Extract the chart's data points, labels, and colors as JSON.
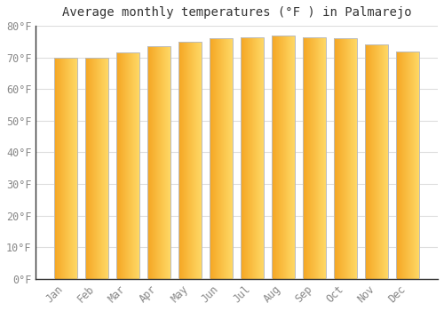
{
  "title": "Average monthly temperatures (°F ) in Palmarejo",
  "months": [
    "Jan",
    "Feb",
    "Mar",
    "Apr",
    "May",
    "Jun",
    "Jul",
    "Aug",
    "Sep",
    "Oct",
    "Nov",
    "Dec"
  ],
  "values": [
    70.0,
    70.0,
    71.5,
    73.5,
    75.0,
    76.0,
    76.5,
    77.0,
    76.5,
    76.0,
    74.0,
    72.0
  ],
  "bar_color_left": "#F5A623",
  "bar_color_right": "#FFD966",
  "bar_edge_color": "#BBBBBB",
  "ylim": [
    0,
    80
  ],
  "yticks": [
    0,
    10,
    20,
    30,
    40,
    50,
    60,
    70,
    80
  ],
  "ytick_labels": [
    "0°F",
    "10°F",
    "20°F",
    "30°F",
    "40°F",
    "50°F",
    "60°F",
    "70°F",
    "80°F"
  ],
  "background_color": "#FFFFFF",
  "grid_color": "#DDDDDD",
  "title_fontsize": 10,
  "tick_fontsize": 8.5,
  "font_family": "monospace",
  "bar_width": 0.75,
  "n_grad": 80
}
